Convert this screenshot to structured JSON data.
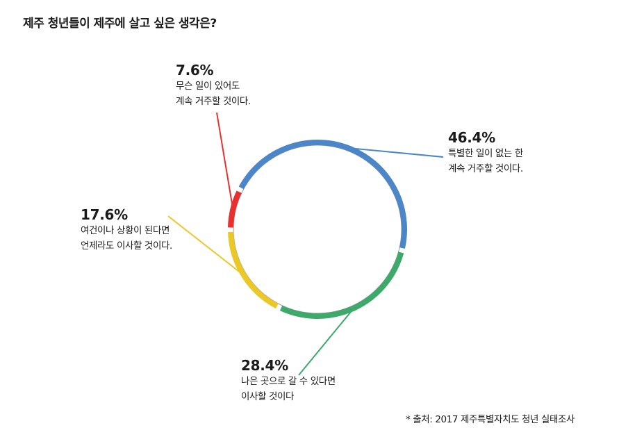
{
  "chart_data": {
    "type": "pie",
    "style": "ring",
    "title": "제주 청년들이 제주에 살고 싶은 생각은?",
    "slices": [
      {
        "value": 46.4,
        "pct_label": "46.4%",
        "text": [
          "특별한 일이 없는 한",
          "계속 거주할 것이다."
        ],
        "color": "#4a86c8"
      },
      {
        "value": 28.4,
        "pct_label": "28.4%",
        "text": [
          "나은 곳으로 갈 수 있다면",
          "이사할 것이다"
        ],
        "color": "#3daa6c"
      },
      {
        "value": 17.6,
        "pct_label": "17.6%",
        "text": [
          "여건이나 상황이 된다면",
          "언제라도 이사할 것이다."
        ],
        "color": "#ecc826"
      },
      {
        "value": 7.6,
        "pct_label": "7.6%",
        "text": [
          "무슨 일이 있어도",
          "계속 거주할 것이다."
        ],
        "color": "#e8312f"
      }
    ],
    "source": "* 출처: 2017 제주특별자치도 청년 실태조사"
  }
}
